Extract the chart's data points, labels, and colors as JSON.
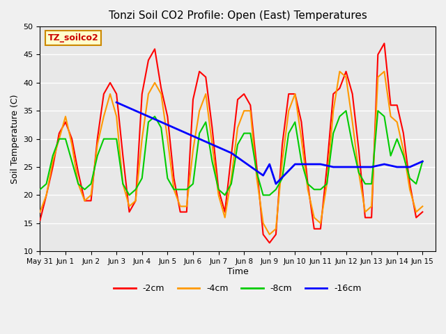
{
  "title": "Tonzi Soil CO2 Profile: Open (East) Temperatures",
  "xlabel": "Time",
  "ylabel": "Soil Temperature (C)",
  "ylim": [
    10,
    50
  ],
  "xlim": [
    0,
    15.5
  ],
  "legend_label": "TZ_soilco2",
  "series_labels": [
    "-2cm",
    "-4cm",
    "-8cm",
    "-16cm"
  ],
  "series_colors": [
    "#ff0000",
    "#ff9900",
    "#00cc00",
    "#0000ff"
  ],
  "background_color": "#e8e8e8",
  "xtick_labels": [
    "May 31",
    "Jun 1",
    "Jun 2",
    "Jun 3",
    "Jun 4",
    "Jun 5",
    "Jun 6",
    "Jun 7",
    "Jun 8",
    "Jun 9",
    "Jun 10",
    "Jun 11",
    "Jun 12",
    "Jun 13",
    "Jun 14",
    "Jun 15"
  ],
  "grid_color": "#ffffff",
  "cm2_data_x": [
    0,
    0.25,
    0.5,
    0.75,
    1.0,
    1.25,
    1.5,
    1.75,
    2.0,
    2.25,
    2.5,
    2.75,
    3.0,
    3.25,
    3.5,
    3.75,
    4.0,
    4.25,
    4.5,
    4.75,
    5.0,
    5.25,
    5.5,
    5.75,
    6.0,
    6.25,
    6.5,
    6.75,
    7.0,
    7.25,
    7.5,
    7.75,
    8.0,
    8.25,
    8.5,
    8.75,
    9.0,
    9.25,
    9.5,
    9.75,
    10.0,
    10.25,
    10.5,
    10.75,
    11.0,
    11.25,
    11.5,
    11.75,
    12.0,
    12.25,
    12.5,
    12.75,
    13.0,
    13.25,
    13.5,
    13.75,
    14.0,
    14.25,
    14.5,
    14.75,
    15.0
  ],
  "cm2_data_y": [
    15.5,
    20,
    25,
    31,
    33,
    30,
    24,
    19,
    19,
    30,
    38,
    40,
    38,
    27,
    17,
    19,
    38,
    44,
    46,
    39,
    34,
    23,
    17,
    17,
    37,
    42,
    41,
    32,
    21,
    17,
    27,
    37,
    38,
    36,
    25,
    13,
    11.5,
    13,
    29,
    38,
    38,
    33,
    22,
    14,
    14,
    25,
    38,
    39,
    42,
    38,
    28,
    16,
    16,
    45,
    47,
    36,
    36,
    31,
    22,
    16,
    17
  ],
  "cm4_data_x": [
    0,
    0.25,
    0.5,
    0.75,
    1.0,
    1.25,
    1.5,
    1.75,
    2.0,
    2.25,
    2.5,
    2.75,
    3.0,
    3.25,
    3.5,
    3.75,
    4.0,
    4.25,
    4.5,
    4.75,
    5.0,
    5.25,
    5.5,
    5.75,
    6.0,
    6.25,
    6.5,
    6.75,
    7.0,
    7.25,
    7.5,
    7.75,
    8.0,
    8.25,
    8.5,
    8.75,
    9.0,
    9.25,
    9.5,
    9.75,
    10.0,
    10.25,
    10.5,
    10.75,
    11.0,
    11.25,
    11.5,
    11.75,
    12.0,
    12.25,
    12.5,
    12.75,
    13.0,
    13.25,
    13.5,
    13.75,
    14.0,
    14.25,
    14.5,
    14.75,
    15.0
  ],
  "cm4_data_y": [
    17,
    20,
    26,
    30,
    34,
    29,
    22,
    19,
    20,
    29,
    34,
    38,
    34,
    22,
    18,
    19,
    30,
    38,
    40,
    38,
    30,
    21,
    18,
    18,
    28,
    35,
    38,
    29,
    20,
    16,
    23,
    32,
    35,
    35,
    23,
    15,
    13,
    14,
    26,
    35,
    38,
    30,
    21,
    16,
    15,
    22,
    35,
    42,
    41,
    33,
    24,
    17,
    18,
    41,
    42,
    34,
    33,
    28,
    21,
    17,
    18
  ],
  "cm8_data_x": [
    0,
    0.25,
    0.5,
    0.75,
    1.0,
    1.25,
    1.5,
    1.75,
    2.0,
    2.25,
    2.5,
    2.75,
    3.0,
    3.25,
    3.5,
    3.75,
    4.0,
    4.25,
    4.5,
    4.75,
    5.0,
    5.25,
    5.5,
    5.75,
    6.0,
    6.25,
    6.5,
    6.75,
    7.0,
    7.25,
    7.5,
    7.75,
    8.0,
    8.25,
    8.5,
    8.75,
    9.0,
    9.25,
    9.5,
    9.75,
    10.0,
    10.25,
    10.5,
    10.75,
    11.0,
    11.25,
    11.5,
    11.75,
    12.0,
    12.25,
    12.5,
    12.75,
    13.0,
    13.25,
    13.5,
    13.75,
    14.0,
    14.25,
    14.5,
    14.75,
    15.0
  ],
  "cm8_data_y": [
    21,
    22,
    27,
    30,
    30,
    26,
    22,
    21,
    22,
    27,
    30,
    30,
    30,
    22,
    20,
    21,
    23,
    33,
    34,
    32,
    23,
    21,
    21,
    21,
    22,
    31,
    33,
    26,
    21,
    20,
    22,
    29,
    31,
    31,
    24,
    20,
    20,
    21,
    23,
    31,
    33,
    26,
    22,
    21,
    21,
    22,
    31,
    34,
    35,
    29,
    24,
    22,
    22,
    35,
    34,
    27,
    30,
    27,
    23,
    22,
    26
  ],
  "cm16_data_x": [
    0,
    3.0,
    7.5,
    8.75,
    9.0,
    9.25,
    10.0,
    10.5,
    11.0,
    11.5,
    12.0,
    12.5,
    13.0,
    13.5,
    14.0,
    14.5,
    15.0
  ],
  "cm16_data_y": [
    null,
    36.5,
    27.5,
    23.5,
    25.5,
    22.0,
    25.5,
    25.5,
    25.5,
    25.0,
    25.0,
    25.0,
    25.0,
    25.5,
    25.0,
    25.0,
    26.0
  ]
}
